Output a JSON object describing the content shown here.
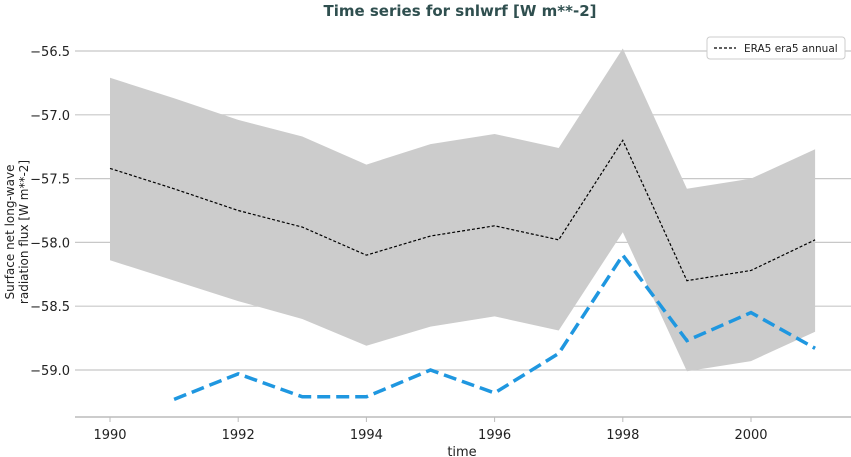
{
  "chart_data": {
    "type": "line",
    "title": "Time series for snlwrf [W m**-2]",
    "xlabel": "time",
    "ylabel": "Surface net long-wave radiation flux [W m**-2]",
    "ylabel_lines": [
      "Surface net long-wave",
      "radiation flux [W m**-2]"
    ],
    "xlim": [
      1989.45,
      2002.1
    ],
    "ylim": [
      -59.37,
      -56.3
    ],
    "xticks": [
      1990,
      1992,
      1994,
      1996,
      1998,
      2000
    ],
    "yticks": [
      -56.5,
      -57.0,
      -57.5,
      -58.0,
      -58.5,
      -59.0
    ],
    "ytick_labels": [
      "−56.5",
      "−57.0",
      "−57.5",
      "−58.0",
      "−58.5",
      "−59.0"
    ],
    "grid": "horizontal",
    "legend_position": "top-right",
    "colors": {
      "title": "#2f4f4f",
      "band": "#cccccc",
      "mean": "#000000",
      "blue": "#1f97e0",
      "grid": "#c8c8c8"
    },
    "band": {
      "x": [
        1990,
        1991,
        1992,
        1993,
        1994,
        1995,
        1996,
        1997,
        1998,
        1999,
        2000,
        2001
      ],
      "upper": [
        -56.71,
        -56.87,
        -57.04,
        -57.17,
        -57.39,
        -57.23,
        -57.15,
        -57.26,
        -56.48,
        -57.58,
        -57.5,
        -57.27
      ],
      "lower": [
        -58.14,
        -58.3,
        -58.46,
        -58.6,
        -58.81,
        -58.66,
        -58.58,
        -58.69,
        -57.92,
        -59.01,
        -58.93,
        -58.7
      ]
    },
    "series": [
      {
        "name": "ERA5 era5 annual",
        "style": "dashed-thin",
        "x": [
          1990,
          1991,
          1992,
          1993,
          1994,
          1995,
          1996,
          1997,
          1998,
          1999,
          2000,
          2001
        ],
        "values": [
          -57.42,
          -57.58,
          -57.75,
          -57.88,
          -58.1,
          -57.95,
          -57.87,
          -57.98,
          -57.2,
          -58.3,
          -58.22,
          -57.98
        ]
      },
      {
        "style": "dashed-thick",
        "x": [
          1991,
          1992,
          1993,
          1994,
          1995,
          1996,
          1997,
          1998,
          1999,
          2000,
          2001
        ],
        "values": [
          -59.23,
          -59.03,
          -59.21,
          -59.21,
          -59.0,
          -59.18,
          -58.87,
          -58.1,
          -58.77,
          -58.55,
          -58.83
        ]
      }
    ]
  }
}
